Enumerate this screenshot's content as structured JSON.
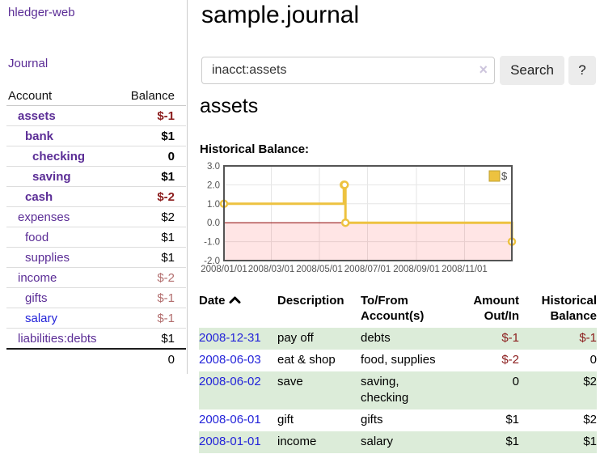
{
  "sidebar": {
    "brand": "hledger-web",
    "nav": {
      "journal": "Journal"
    },
    "table": {
      "account_header": "Account",
      "balance_header": "Balance"
    },
    "accounts": [
      {
        "name": "assets",
        "indent": 1,
        "bold": true,
        "balance": "$-1",
        "balance_style": "neg-strong"
      },
      {
        "name": "bank",
        "indent": 2,
        "bold": true,
        "balance": "$1",
        "balance_style": "pos"
      },
      {
        "name": "checking",
        "indent": 3,
        "bold": true,
        "balance": "0",
        "balance_style": "pos"
      },
      {
        "name": "saving",
        "indent": 3,
        "bold": true,
        "balance": "$1",
        "balance_style": "pos"
      },
      {
        "name": "cash",
        "indent": 2,
        "bold": true,
        "balance": "$-2",
        "balance_style": "neg-strong"
      },
      {
        "name": "expenses",
        "indent": 1,
        "bold": false,
        "balance": "$2",
        "balance_style": "pos"
      },
      {
        "name": "food",
        "indent": 2,
        "bold": false,
        "balance": "$1",
        "balance_style": "pos"
      },
      {
        "name": "supplies",
        "indent": 2,
        "bold": false,
        "balance": "$1",
        "balance_style": "pos"
      },
      {
        "name": "income",
        "indent": 1,
        "bold": false,
        "balance": "$-2",
        "balance_style": "neg-dim"
      },
      {
        "name": "gifts",
        "indent": 2,
        "bold": false,
        "balance": "$-1",
        "balance_style": "neg-dim"
      },
      {
        "name": "salary",
        "indent": 2,
        "bold": false,
        "balance": "$-1",
        "balance_style": "neg-dim",
        "link_color": "blue"
      },
      {
        "name": "liabilities:debts",
        "indent": 1,
        "bold": false,
        "balance": "$1",
        "balance_style": "pos"
      }
    ],
    "total": "0"
  },
  "header": {
    "title": "sample.journal"
  },
  "search": {
    "value": "inacct:assets",
    "clear_icon": "×",
    "button": "Search",
    "help_button": "?"
  },
  "section": {
    "title": "assets",
    "chart_label": "Historical Balance:"
  },
  "chart_data": {
    "type": "line",
    "title": "Historical Balance:",
    "steps": true,
    "series": [
      {
        "name": "$",
        "color": "#edc240",
        "points": [
          [
            "2008-01-01",
            1
          ],
          [
            "2008-06-01",
            2
          ],
          [
            "2008-06-02",
            2
          ],
          [
            "2008-06-03",
            0
          ],
          [
            "2008-12-31",
            -1
          ]
        ]
      }
    ],
    "x_range": [
      "2008-01-01",
      "2008-12-31"
    ],
    "ylim": [
      -2,
      3
    ],
    "y_ticks": [
      3.0,
      2.0,
      1.0,
      0.0,
      -1.0,
      -2.0
    ],
    "x_tick_dates": [
      "2008-01-01",
      "2008-03-01",
      "2008-05-01",
      "2008-07-01",
      "2008-09-01",
      "2008-11-01"
    ],
    "x_tick_labels": [
      "2008/01/01",
      "2008/03/01",
      "2008/05/01",
      "2008/07/01",
      "2008/09/01",
      "2008/11/01"
    ],
    "grid": true,
    "legend_position": "top-right",
    "legend_label": "$",
    "negative_fill": "rgba(255,0,0,0.10)",
    "zero_line_color": "#8b0000",
    "xlabel": "",
    "ylabel": ""
  },
  "register": {
    "headers": {
      "date": "Date",
      "sort_direction": "ascending",
      "description": "Description",
      "accounts": "To/From Account(s)",
      "amount": "Amount Out/In",
      "balance": "Historical Balance"
    },
    "rows": [
      {
        "date": "2008-12-31",
        "description": "pay off",
        "accounts": "debts",
        "amount": "$-1",
        "amount_negative": true,
        "balance": "$-1",
        "balance_negative": true
      },
      {
        "date": "2008-06-03",
        "description": "eat & shop",
        "accounts": "food, supplies",
        "amount": "$-2",
        "amount_negative": true,
        "balance": "0",
        "balance_negative": false
      },
      {
        "date": "2008-06-02",
        "description": "save",
        "accounts": "saving, checking",
        "amount": "0",
        "amount_negative": false,
        "balance": "$2",
        "balance_negative": false
      },
      {
        "date": "2008-06-01",
        "description": "gift",
        "accounts": "gifts",
        "amount": "$1",
        "amount_negative": false,
        "balance": "$2",
        "balance_negative": false
      },
      {
        "date": "2008-01-01",
        "description": "income",
        "accounts": "salary",
        "amount": "$1",
        "amount_negative": false,
        "balance": "$1",
        "balance_negative": false
      }
    ]
  },
  "colors": {
    "purple": "#5b2d96",
    "blue": "#2323d9",
    "neg_strong": "#8b1c1c",
    "neg_dim": "#b26d6d",
    "row_green": "#dcecd9",
    "series_yellow": "#edc240",
    "chart_border": "#545454",
    "grid_line": "#e6e6e6"
  }
}
